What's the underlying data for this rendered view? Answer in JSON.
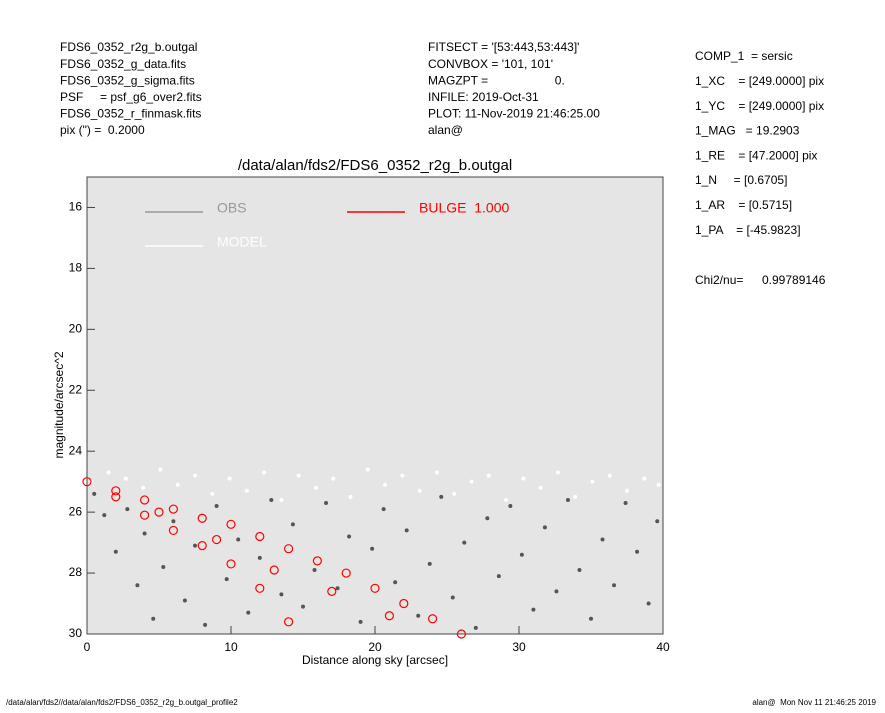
{
  "header": {
    "left": [
      "FDS6_0352_r2g_b.outgal",
      "FDS6_0352_g_data.fits",
      "FDS6_0352_g_sigma.fits",
      "PSF     = psf_g6_over2.fits",
      "FDS6_0352_r_finmask.fits",
      "pix (\") =  0.2000"
    ],
    "middle": [
      "FITSECT = '[53:443,53:443]'",
      "CONVBOX = '101, 101'",
      "MAGZPT =                    0.",
      "INFILE: 2019-Oct-31",
      "PLOT: 11-Nov-2019 21:46:25.00",
      "alan@"
    ],
    "right": [
      "COMP_1  = sersic",
      "1_XC    = [249.0000] pix",
      "1_YC    = [249.0000] pix",
      "1_MAG   = 19.2903",
      "1_RE    = [47.2000] pix",
      "1_N     = [0.6705]",
      "1_AR    = [0.5715]",
      "1_PA    = [-45.9823]"
    ],
    "chi2_label": "Chi2/nu=",
    "chi2_value": 0.99789146
  },
  "footer": {
    "left": "/data/alan/fds2//data/alan/fds2/FDS6_0352_r2g_b.outgal_profile2",
    "right": "alan@  Mon Nov 11 21:46:25 2019"
  },
  "chart_data": {
    "type": "scatter",
    "title": "/data/alan/fds2/FDS6_0352_r2g_b.outgal",
    "x_label": "Distance along sky [arcsec]",
    "y_label": "magnitude/arcsec^2",
    "xlim": [
      0,
      40
    ],
    "xticks": [
      0,
      10,
      20,
      30,
      40
    ],
    "ylim": [
      15,
      30
    ],
    "yticks": [
      16,
      18,
      20,
      22,
      24,
      26,
      28,
      30
    ],
    "y_inverted": true,
    "series": [
      {
        "name": "OBS",
        "color": "#555555",
        "x": [
          0.5,
          1.2,
          2,
          2.8,
          3.5,
          4,
          4.6,
          5.3,
          6,
          6.8,
          7.5,
          8.2,
          9,
          9.7,
          10.5,
          11.2,
          12,
          12.8,
          13.5,
          14.3,
          15,
          15.8,
          16.6,
          17.4,
          18.2,
          19,
          19.8,
          20.6,
          21.4,
          22.2,
          23,
          23.8,
          24.6,
          25.4,
          26.2,
          27,
          27.8,
          28.6,
          29.4,
          30.2,
          31,
          31.8,
          32.6,
          33.4,
          34.2,
          35,
          35.8,
          36.6,
          37.4,
          38.2,
          39,
          39.6
        ],
        "values": [
          25.4,
          26.1,
          27.3,
          25.9,
          28.4,
          26.7,
          29.5,
          27.8,
          26.3,
          28.9,
          27.1,
          29.7,
          25.8,
          28.2,
          26.9,
          29.3,
          27.5,
          25.6,
          28.7,
          26.4,
          29.1,
          27.9,
          25.7,
          28.5,
          26.8,
          29.6,
          27.2,
          25.9,
          28.3,
          26.6,
          29.4,
          27.7,
          25.5,
          28.8,
          27,
          29.8,
          26.2,
          28.1,
          25.8,
          27.4,
          29.2,
          26.5,
          28.6,
          25.6,
          27.9,
          29.5,
          26.9,
          28.4,
          25.7,
          27.3,
          29,
          26.3
        ]
      },
      {
        "name": "MODEL",
        "color": "#ffffff",
        "x": [
          0.3,
          1.5,
          2.7,
          3.9,
          5.1,
          6.3,
          7.5,
          8.7,
          9.9,
          11.1,
          12.3,
          13.5,
          14.7,
          15.9,
          17.1,
          18.3,
          19.5,
          20.7,
          21.9,
          23.1,
          24.3,
          25.5,
          26.7,
          27.9,
          29.1,
          30.3,
          31.5,
          32.7,
          33.9,
          35.1,
          36.3,
          37.5,
          38.7,
          39.7
        ],
        "values": [
          25.0,
          24.7,
          24.9,
          25.2,
          24.6,
          25.1,
          24.8,
          25.4,
          24.9,
          25.3,
          24.7,
          25.6,
          24.8,
          25.2,
          24.9,
          25.5,
          24.6,
          25.1,
          24.8,
          25.3,
          24.7,
          25.4,
          25.0,
          24.8,
          25.6,
          24.9,
          25.2,
          24.7,
          25.5,
          25.0,
          24.8,
          25.3,
          24.9,
          25.1
        ]
      },
      {
        "name": "BULGE  1.000",
        "color": "#ff0000",
        "x": [
          0,
          2,
          4,
          6,
          8,
          10,
          12,
          14,
          16,
          18,
          20,
          22,
          24,
          26,
          2,
          4,
          6,
          8,
          10,
          12,
          14,
          5,
          9,
          13,
          17,
          21
        ],
        "values": [
          25,
          25.3,
          25.6,
          25.9,
          26.2,
          26.4,
          26.8,
          27.2,
          27.6,
          28.0,
          28.5,
          29.0,
          29.5,
          30,
          25.5,
          26.1,
          26.6,
          27.1,
          27.7,
          28.5,
          29.6,
          26,
          26.9,
          27.9,
          28.6,
          29.4
        ]
      }
    ]
  }
}
